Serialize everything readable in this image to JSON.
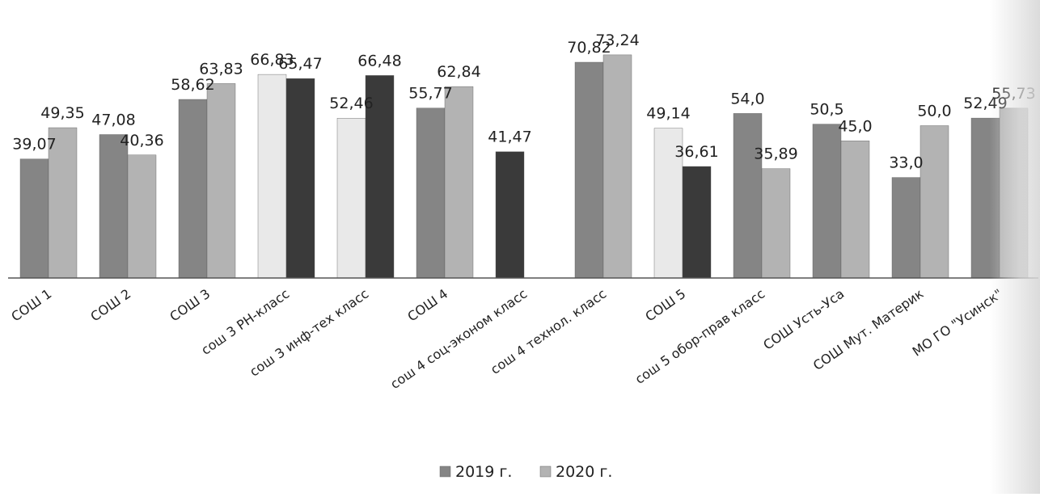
{
  "chart_data": {
    "type": "bar",
    "categories": [
      "СОШ 1",
      "СОШ 2",
      "СОШ 3",
      "сош 3 РН-класс",
      "сош 3 инф-тех класс",
      "СОШ 4",
      "сош 4 соц-эконом класс",
      "сош 4 технол. класс",
      "СОШ 5",
      "сош 5 обор-прав класс",
      "СОШ Усть-Уса",
      "СОШ Мут. Материк",
      "МО ГО \"Усинск\""
    ],
    "series": [
      {
        "name": "2019 г.",
        "color": "#858585",
        "values": [
          39.07,
          47.08,
          58.62,
          66.83,
          52.46,
          55.77,
          41.47,
          70.82,
          49.14,
          54.0,
          50.5,
          33.0,
          52.49
        ],
        "labels": [
          "39,07",
          "47,08",
          "58,62",
          "66,83",
          "52,46",
          "55,77",
          "41,47",
          "70,82",
          "49,14",
          "54,0",
          "50,5",
          "33,0",
          "52,49"
        ],
        "bar_colors": [
          "#858585",
          "#858585",
          "#858585",
          "#e9e9e9",
          "#e9e9e9",
          "#858585",
          "#3a3a3a",
          "#858585",
          "#e9e9e9",
          "#858585",
          "#858585",
          "#858585",
          "#858585"
        ]
      },
      {
        "name": "2020 г.",
        "color": "#b3b3b3",
        "values": [
          49.35,
          40.36,
          63.83,
          65.47,
          66.48,
          62.84,
          null,
          73.24,
          36.61,
          35.89,
          45.0,
          50.0,
          55.73
        ],
        "labels": [
          "49,35",
          "40,36",
          "63,83",
          "65,47",
          "66,48",
          "62,84",
          "",
          "73,24",
          "36,61",
          "35,89",
          "45,0",
          "50,0",
          "55,73"
        ],
        "bar_colors": [
          "#b3b3b3",
          "#b3b3b3",
          "#b3b3b3",
          "#3a3a3a",
          "#3a3a3a",
          "#b3b3b3",
          "#b3b3b3",
          "#b3b3b3",
          "#3a3a3a",
          "#b3b3b3",
          "#b3b3b3",
          "#b3b3b3",
          "#b3b3b3"
        ]
      }
    ],
    "ylim": [
      0,
      80
    ],
    "grid": false,
    "legend_position": "bottom",
    "title": "",
    "xlabel": "",
    "ylabel": ""
  }
}
